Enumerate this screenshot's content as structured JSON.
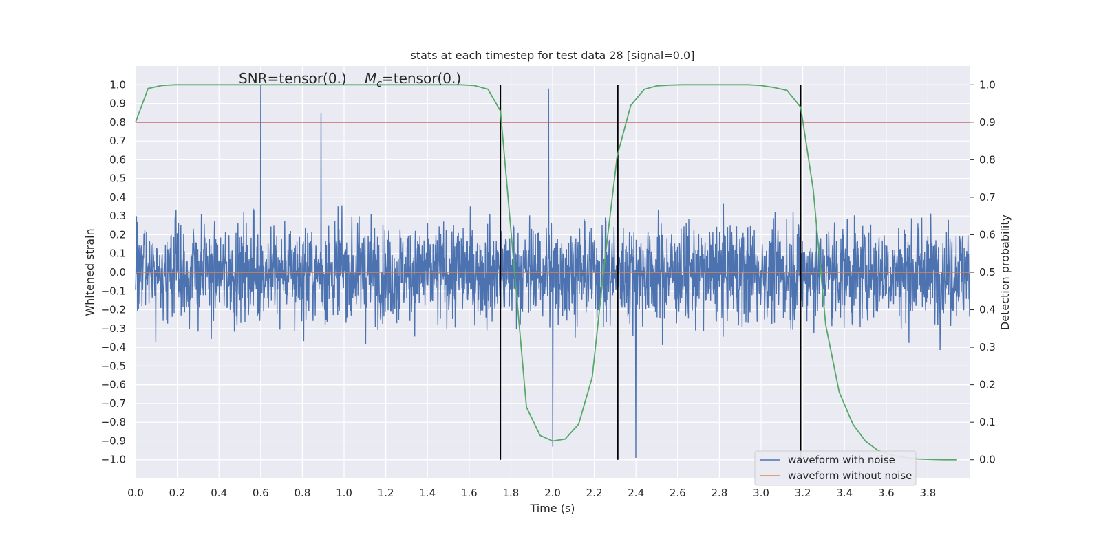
{
  "chart_data": {
    "type": "line",
    "title": "stats at each timestep for test data 28 [signal=0.0]",
    "annotation": {
      "snr": "SNR=tensor(0.)",
      "mc_symbol": "M",
      "mc_subscript": "c",
      "mc_value": "=tensor(0.)"
    },
    "xlabel": "Time (s)",
    "ylabel": "Whitened strain",
    "y2label": "Detection probability",
    "xlim": [
      0.0,
      4.0
    ],
    "ylim": [
      -1.1,
      1.1
    ],
    "y2lim": [
      -0.05,
      1.05
    ],
    "x_ticks": [
      "0.0",
      "0.2",
      "0.4",
      "0.6",
      "0.8",
      "1.0",
      "1.2",
      "1.4",
      "1.6",
      "1.8",
      "2.0",
      "2.2",
      "2.4",
      "2.6",
      "2.8",
      "3.0",
      "3.2",
      "3.4",
      "3.6",
      "3.8"
    ],
    "y_ticks": [
      "1.0",
      "0.9",
      "0.8",
      "0.7",
      "0.6",
      "0.5",
      "0.4",
      "0.3",
      "0.2",
      "0.1",
      "0.0",
      "−0.1",
      "−0.2",
      "−0.3",
      "−0.4",
      "−0.5",
      "−0.6",
      "−0.7",
      "−0.8",
      "−0.9",
      "−1.0"
    ],
    "y2_ticks": [
      "1.0",
      "0.9",
      "0.8",
      "0.7",
      "0.6",
      "0.5",
      "0.4",
      "0.3",
      "0.2",
      "0.1",
      "0.0"
    ],
    "grid": true,
    "legend_position": "bottom-right",
    "series": [
      {
        "name": "waveform with noise",
        "color": "#4c72b0",
        "axis": "left",
        "description_range": [
          -1.0,
          1.0
        ],
        "notable_peaks": [
          {
            "x": 0.6,
            "y": 1.0
          },
          {
            "x": 0.89,
            "y": 0.85
          },
          {
            "x": 2.0,
            "y": -0.93
          },
          {
            "x": 2.4,
            "y": -0.99
          },
          {
            "x": 1.98,
            "y": 0.98
          }
        ]
      },
      {
        "name": "waveform without noise",
        "color": "#dd8452",
        "axis": "left",
        "x": [
          0.0,
          4.0
        ],
        "y": [
          0.0,
          0.0
        ]
      },
      {
        "name": "detection probability",
        "color": "#55a868",
        "axis": "right",
        "x": [
          0.0,
          0.06,
          0.125,
          0.19,
          0.25,
          0.31,
          0.375,
          0.44,
          0.5,
          0.56,
          0.625,
          0.69,
          0.75,
          0.81,
          0.875,
          0.94,
          1.0,
          1.06,
          1.125,
          1.19,
          1.25,
          1.31,
          1.375,
          1.44,
          1.5,
          1.56,
          1.625,
          1.69,
          1.75,
          1.81,
          1.875,
          1.94,
          2.0,
          2.06,
          2.125,
          2.19,
          2.25,
          2.31,
          2.375,
          2.44,
          2.5,
          2.56,
          2.625,
          2.69,
          2.75,
          2.81,
          2.875,
          2.94,
          3.0,
          3.06,
          3.125,
          3.19,
          3.25,
          3.31,
          3.375,
          3.44,
          3.5,
          3.56,
          3.625,
          3.69,
          3.75,
          3.81,
          3.875,
          3.94
        ],
        "y": [
          0.9,
          0.99,
          0.998,
          1.0,
          1.0,
          1.0,
          1.0,
          1.0,
          1.0,
          1.0,
          1.0,
          1.0,
          1.0,
          1.0,
          1.0,
          1.0,
          1.0,
          1.0,
          1.0,
          1.0,
          1.0,
          1.0,
          1.0,
          1.0,
          1.0,
          1.0,
          0.998,
          0.988,
          0.93,
          0.55,
          0.14,
          0.065,
          0.05,
          0.055,
          0.095,
          0.22,
          0.53,
          0.81,
          0.945,
          0.988,
          0.997,
          0.999,
          1.0,
          1.0,
          1.0,
          1.0,
          1.0,
          1.0,
          0.998,
          0.993,
          0.985,
          0.94,
          0.72,
          0.36,
          0.18,
          0.095,
          0.05,
          0.025,
          0.012,
          0.006,
          0.002,
          0.001,
          0.0,
          0.0
        ]
      }
    ],
    "horizontal_lines": [
      {
        "y": 0.8,
        "color": "#c44e52"
      }
    ],
    "vertical_lines": [
      {
        "x": 1.75,
        "color": "#000000"
      },
      {
        "x": 2.313,
        "color": "#000000"
      },
      {
        "x": 3.19,
        "color": "#000000"
      }
    ]
  }
}
